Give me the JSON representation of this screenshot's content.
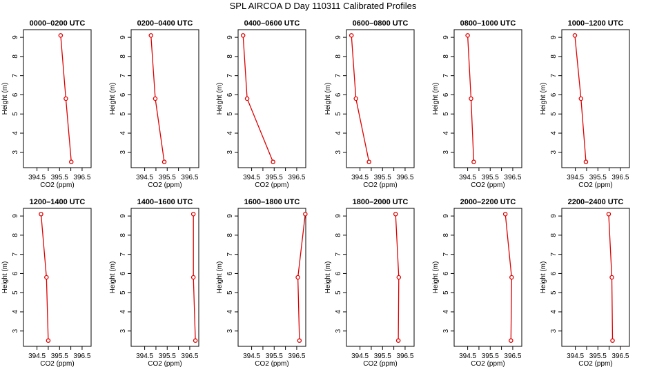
{
  "figure": {
    "title": "SPL AIRCOA D  Day 110311  Calibrated Profiles",
    "line_color": "#dd0000"
  },
  "chart_data": [
    {
      "type": "line",
      "title": "0000–0200 UTC",
      "xlabel": "CO2 (ppm)",
      "ylabel": "Height (m)",
      "xlim": [
        393.9,
        396.9
      ],
      "ylim": [
        2.2,
        9.4
      ],
      "xticks": [
        394.5,
        395.5,
        396.5
      ],
      "xtick_labels": [
        "394.5",
        "395.5",
        "396.5"
      ],
      "yticks": [
        3,
        4,
        5,
        6,
        7,
        8,
        9
      ],
      "ytick_labels": [
        "3",
        "4",
        "5",
        "6",
        "7",
        "8",
        "9"
      ],
      "points": [
        {
          "x": 395.55,
          "y": 9.1
        },
        {
          "x": 395.78,
          "y": 5.8
        },
        {
          "x": 396.02,
          "y": 2.5
        }
      ]
    },
    {
      "type": "line",
      "title": "0200–0400 UTC",
      "xlabel": "CO2 (ppm)",
      "ylabel": "Height (m)",
      "xlim": [
        393.9,
        396.9
      ],
      "ylim": [
        2.2,
        9.4
      ],
      "xticks": [
        394.5,
        395.5,
        396.5
      ],
      "xtick_labels": [
        "394.5",
        "395.5",
        "396.5"
      ],
      "yticks": [
        3,
        4,
        5,
        6,
        7,
        8,
        9
      ],
      "ytick_labels": [
        "3",
        "4",
        "5",
        "6",
        "7",
        "8",
        "9"
      ],
      "points": [
        {
          "x": 394.78,
          "y": 9.1
        },
        {
          "x": 394.97,
          "y": 5.8
        },
        {
          "x": 395.37,
          "y": 2.5
        }
      ]
    },
    {
      "type": "line",
      "title": "0400–0600 UTC",
      "xlabel": "CO2 (ppm)",
      "ylabel": "Height (m)",
      "xlim": [
        393.9,
        396.9
      ],
      "ylim": [
        2.2,
        9.4
      ],
      "xticks": [
        394.5,
        395.5,
        396.5
      ],
      "xtick_labels": [
        "394.5",
        "395.5",
        "396.5"
      ],
      "yticks": [
        3,
        4,
        5,
        6,
        7,
        8,
        9
      ],
      "ytick_labels": [
        "3",
        "4",
        "5",
        "6",
        "7",
        "8",
        "9"
      ],
      "points": [
        {
          "x": 394.12,
          "y": 9.1
        },
        {
          "x": 394.3,
          "y": 5.8
        },
        {
          "x": 395.45,
          "y": 2.5
        }
      ]
    },
    {
      "type": "line",
      "title": "0600–0800 UTC",
      "xlabel": "CO2 (ppm)",
      "ylabel": "Height (m)",
      "xlim": [
        393.9,
        396.9
      ],
      "ylim": [
        2.2,
        9.4
      ],
      "xticks": [
        394.5,
        395.5,
        396.5
      ],
      "xtick_labels": [
        "394.5",
        "395.5",
        "396.5"
      ],
      "yticks": [
        3,
        4,
        5,
        6,
        7,
        8,
        9
      ],
      "ytick_labels": [
        "3",
        "4",
        "5",
        "6",
        "7",
        "8",
        "9"
      ],
      "points": [
        {
          "x": 394.12,
          "y": 9.1
        },
        {
          "x": 394.32,
          "y": 5.8
        },
        {
          "x": 394.9,
          "y": 2.5
        }
      ]
    },
    {
      "type": "line",
      "title": "0800–1000 UTC",
      "xlabel": "CO2 (ppm)",
      "ylabel": "Height (m)",
      "xlim": [
        393.9,
        396.9
      ],
      "ylim": [
        2.2,
        9.4
      ],
      "xticks": [
        394.5,
        395.5,
        396.5
      ],
      "xtick_labels": [
        "394.5",
        "395.5",
        "396.5"
      ],
      "yticks": [
        3,
        4,
        5,
        6,
        7,
        8,
        9
      ],
      "ytick_labels": [
        "3",
        "4",
        "5",
        "6",
        "7",
        "8",
        "9"
      ],
      "points": [
        {
          "x": 394.5,
          "y": 9.1
        },
        {
          "x": 394.65,
          "y": 5.8
        },
        {
          "x": 394.77,
          "y": 2.5
        }
      ]
    },
    {
      "type": "line",
      "title": "1000–1200 UTC",
      "xlabel": "CO2 (ppm)",
      "ylabel": "Height (m)",
      "xlim": [
        393.9,
        396.9
      ],
      "ylim": [
        2.2,
        9.4
      ],
      "xticks": [
        394.5,
        395.5,
        396.5
      ],
      "xtick_labels": [
        "394.5",
        "395.5",
        "396.5"
      ],
      "yticks": [
        3,
        4,
        5,
        6,
        7,
        8,
        9
      ],
      "ytick_labels": [
        "3",
        "4",
        "5",
        "6",
        "7",
        "8",
        "9"
      ],
      "points": [
        {
          "x": 394.48,
          "y": 9.1
        },
        {
          "x": 394.75,
          "y": 5.8
        },
        {
          "x": 394.97,
          "y": 2.5
        }
      ]
    },
    {
      "type": "line",
      "title": "1200–1400 UTC",
      "xlabel": "CO2 (ppm)",
      "ylabel": "Height (m)",
      "xlim": [
        393.9,
        396.9
      ],
      "ylim": [
        2.2,
        9.4
      ],
      "xticks": [
        394.5,
        395.5,
        396.5
      ],
      "xtick_labels": [
        "394.5",
        "395.5",
        "396.5"
      ],
      "yticks": [
        3,
        4,
        5,
        6,
        7,
        8,
        9
      ],
      "ytick_labels": [
        "3",
        "4",
        "5",
        "6",
        "7",
        "8",
        "9"
      ],
      "points": [
        {
          "x": 394.68,
          "y": 9.1
        },
        {
          "x": 394.92,
          "y": 5.8
        },
        {
          "x": 395.0,
          "y": 2.5
        }
      ]
    },
    {
      "type": "line",
      "title": "1400–1600 UTC",
      "xlabel": "CO2 (ppm)",
      "ylabel": "Height (m)",
      "xlim": [
        393.9,
        396.9
      ],
      "ylim": [
        2.2,
        9.4
      ],
      "xticks": [
        394.5,
        395.5,
        396.5
      ],
      "xtick_labels": [
        "394.5",
        "395.5",
        "396.5"
      ],
      "yticks": [
        3,
        4,
        5,
        6,
        7,
        8,
        9
      ],
      "ytick_labels": [
        "3",
        "4",
        "5",
        "6",
        "7",
        "8",
        "9"
      ],
      "points": [
        {
          "x": 396.66,
          "y": 9.1
        },
        {
          "x": 396.66,
          "y": 5.8
        },
        {
          "x": 396.75,
          "y": 2.5
        }
      ]
    },
    {
      "type": "line",
      "title": "1600–1800 UTC",
      "xlabel": "CO2 (ppm)",
      "ylabel": "Height (m)",
      "xlim": [
        393.9,
        396.9
      ],
      "ylim": [
        2.2,
        9.4
      ],
      "xticks": [
        394.5,
        395.5,
        396.5
      ],
      "xtick_labels": [
        "394.5",
        "395.5",
        "396.5"
      ],
      "yticks": [
        3,
        4,
        5,
        6,
        7,
        8,
        9
      ],
      "ytick_labels": [
        "3",
        "4",
        "5",
        "6",
        "7",
        "8",
        "9"
      ],
      "points": [
        {
          "x": 396.88,
          "y": 9.1
        },
        {
          "x": 396.55,
          "y": 5.8
        },
        {
          "x": 396.62,
          "y": 2.5
        }
      ]
    },
    {
      "type": "line",
      "title": "1800–2000 UTC",
      "xlabel": "CO2 (ppm)",
      "ylabel": "Height (m)",
      "xlim": [
        393.9,
        396.9
      ],
      "ylim": [
        2.2,
        9.4
      ],
      "xticks": [
        394.5,
        395.5,
        396.5
      ],
      "xtick_labels": [
        "394.5",
        "395.5",
        "396.5"
      ],
      "yticks": [
        3,
        4,
        5,
        6,
        7,
        8,
        9
      ],
      "ytick_labels": [
        "3",
        "4",
        "5",
        "6",
        "7",
        "8",
        "9"
      ],
      "points": [
        {
          "x": 396.08,
          "y": 9.1
        },
        {
          "x": 396.22,
          "y": 5.8
        },
        {
          "x": 396.2,
          "y": 2.5
        }
      ]
    },
    {
      "type": "line",
      "title": "2000–2200 UTC",
      "xlabel": "CO2 (ppm)",
      "ylabel": "Height (m)",
      "xlim": [
        393.9,
        396.9
      ],
      "ylim": [
        2.2,
        9.4
      ],
      "xticks": [
        394.5,
        395.5,
        396.5
      ],
      "xtick_labels": [
        "394.5",
        "395.5",
        "396.5"
      ],
      "yticks": [
        3,
        4,
        5,
        6,
        7,
        8,
        9
      ],
      "ytick_labels": [
        "3",
        "4",
        "5",
        "6",
        "7",
        "8",
        "9"
      ],
      "points": [
        {
          "x": 396.17,
          "y": 9.1
        },
        {
          "x": 396.45,
          "y": 5.8
        },
        {
          "x": 396.42,
          "y": 2.5
        }
      ]
    },
    {
      "type": "line",
      "title": "2200–2400 UTC",
      "xlabel": "CO2 (ppm)",
      "ylabel": "Height (m)",
      "xlim": [
        393.9,
        396.9
      ],
      "ylim": [
        2.2,
        9.4
      ],
      "xticks": [
        394.5,
        395.5,
        396.5
      ],
      "xtick_labels": [
        "394.5",
        "395.5",
        "396.5"
      ],
      "yticks": [
        3,
        4,
        5,
        6,
        7,
        8,
        9
      ],
      "ytick_labels": [
        "3",
        "4",
        "5",
        "6",
        "7",
        "8",
        "9"
      ],
      "points": [
        {
          "x": 395.98,
          "y": 9.1
        },
        {
          "x": 396.12,
          "y": 5.8
        },
        {
          "x": 396.15,
          "y": 2.5
        }
      ]
    }
  ]
}
